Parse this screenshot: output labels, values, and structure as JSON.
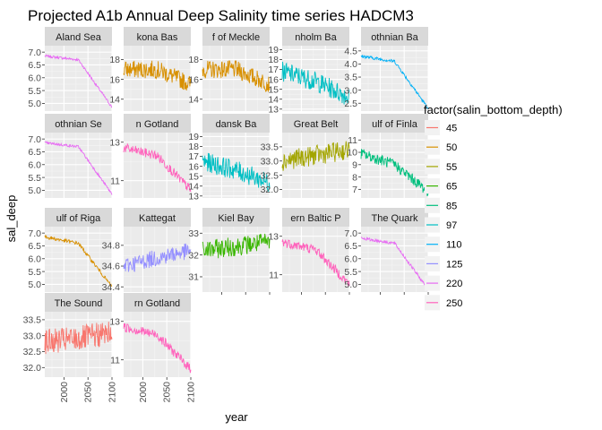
{
  "chart_data": {
    "type": "line",
    "title": "Projected A1b Annual Deep Salinity time series HADCM3",
    "xlabel": "year",
    "ylabel": "sal_deep",
    "xlim": [
      1960,
      2100
    ],
    "x_ticks": [
      "2000",
      "2050",
      "2100"
    ],
    "legend": {
      "title": "factor(salin_bottom_depth)",
      "position": "right",
      "entries": [
        {
          "label": "45",
          "color": "#F8766D"
        },
        {
          "label": "50",
          "color": "#D89000"
        },
        {
          "label": "55",
          "color": "#A3A500"
        },
        {
          "label": "65",
          "color": "#39B600"
        },
        {
          "label": "85",
          "color": "#00BF7D"
        },
        {
          "label": "97",
          "color": "#00BFC4"
        },
        {
          "label": "110",
          "color": "#00B0F6"
        },
        {
          "label": "125",
          "color": "#9590FF"
        },
        {
          "label": "220",
          "color": "#E76BF3"
        },
        {
          "label": "250",
          "color": "#FF62BC"
        }
      ]
    },
    "facets": [
      {
        "strip": "Aland Sea",
        "depth": "220",
        "ylim": [
          4.7,
          7.25
        ],
        "y_ticks": [
          "5.0",
          "5.5",
          "6.0",
          "6.5",
          "7.0"
        ],
        "start": 6.85,
        "mid": 6.7,
        "end": 4.85,
        "noise": 0.05
      },
      {
        "strip": "kona Bas",
        "depth": "50",
        "ylim": [
          12.8,
          19.4
        ],
        "y_ticks": [
          "14",
          "16",
          "18"
        ],
        "start": 17.0,
        "mid": 17.0,
        "end": 15.5,
        "noise": 0.9
      },
      {
        "strip": "f of Meckle",
        "depth": "50",
        "ylim": [
          12.8,
          19.4
        ],
        "y_ticks": [
          "14",
          "16",
          "18"
        ],
        "start": 17.0,
        "mid": 17.0,
        "end": 15.5,
        "noise": 0.9
      },
      {
        "strip": "nholm Ba",
        "depth": "97",
        "ylim": [
          12.8,
          19.4
        ],
        "y_ticks": [
          "13",
          "14",
          "15",
          "16",
          "17",
          "18",
          "19"
        ],
        "start": 16.8,
        "mid": 15.8,
        "end": 14.2,
        "noise": 1.0
      },
      {
        "strip": "othnian Ba",
        "depth": "110",
        "ylim": [
          2.2,
          4.7
        ],
        "y_ticks": [
          "2.5",
          "3.0",
          "3.5",
          "4.0",
          "4.5"
        ],
        "start": 4.3,
        "mid": 4.1,
        "end": 2.3,
        "noise": 0.06
      },
      {
        "strip": "othnian Se",
        "depth": "220",
        "ylim": [
          4.7,
          7.25
        ],
        "y_ticks": [
          "5.0",
          "5.5",
          "6.0",
          "6.5",
          "7.0"
        ],
        "start": 6.85,
        "mid": 6.7,
        "end": 4.85,
        "noise": 0.05
      },
      {
        "strip": "n Gotland",
        "depth": "250",
        "ylim": [
          10.1,
          13.5
        ],
        "y_ticks": [
          "11",
          "13"
        ],
        "start": 12.7,
        "mid": 12.3,
        "end": 10.5,
        "noise": 0.25
      },
      {
        "strip": "dansk Ba",
        "depth": "97",
        "ylim": [
          12.8,
          19.4
        ],
        "y_ticks": [
          "13",
          "14",
          "15",
          "16",
          "17",
          "18",
          "19"
        ],
        "start": 16.5,
        "mid": 15.6,
        "end": 14.3,
        "noise": 1.0
      },
      {
        "strip": "Great Belt",
        "depth": "55",
        "ylim": [
          31.7,
          34.0
        ],
        "y_ticks": [
          "32.0",
          "32.5",
          "33.0",
          "33.5"
        ],
        "start": 33.0,
        "mid": 33.2,
        "end": 33.4,
        "noise": 0.35
      },
      {
        "strip": "ulf of Finla",
        "depth": "85",
        "ylim": [
          6.3,
          11.6
        ],
        "y_ticks": [
          "7",
          "8",
          "9",
          "10",
          "11"
        ],
        "start": 9.9,
        "mid": 9.0,
        "end": 6.8,
        "noise": 0.45
      },
      {
        "strip": "ulf of Riga",
        "depth": "50",
        "ylim": [
          4.7,
          7.25
        ],
        "y_ticks": [
          "5.0",
          "5.5",
          "6.0",
          "6.5",
          "7.0"
        ],
        "start": 6.85,
        "mid": 6.6,
        "end": 4.9,
        "noise": 0.07
      },
      {
        "strip": "Kattegat",
        "depth": "125",
        "ylim": [
          34.35,
          34.98
        ],
        "y_ticks": [
          "34.4",
          "34.6",
          "34.8"
        ],
        "start": 34.6,
        "mid": 34.68,
        "end": 34.75,
        "noise": 0.08
      },
      {
        "strip": "Kiel Bay",
        "depth": "65",
        "ylim": [
          30.3,
          33.3
        ],
        "y_ticks": [
          "31",
          "32",
          "33"
        ],
        "start": 32.2,
        "mid": 32.4,
        "end": 32.6,
        "noise": 0.45
      },
      {
        "strip": "ern Baltic P",
        "depth": "250",
        "ylim": [
          10.1,
          13.5
        ],
        "y_ticks": [
          "11",
          "13"
        ],
        "start": 12.7,
        "mid": 12.3,
        "end": 10.5,
        "noise": 0.25
      },
      {
        "strip": "The Quark",
        "depth": "220",
        "ylim": [
          4.7,
          7.25
        ],
        "y_ticks": [
          "5.0",
          "5.5",
          "6.0",
          "6.5",
          "7.0"
        ],
        "start": 6.8,
        "mid": 6.6,
        "end": 4.8,
        "noise": 0.06
      },
      {
        "strip": "The Sound",
        "depth": "45",
        "ylim": [
          31.7,
          33.75
        ],
        "y_ticks": [
          "32.0",
          "32.5",
          "33.0",
          "33.5"
        ],
        "start": 32.8,
        "mid": 32.9,
        "end": 33.1,
        "noise": 0.4
      },
      {
        "strip": "rn Gotland",
        "depth": "250",
        "ylim": [
          10.1,
          13.5
        ],
        "y_ticks": [
          "11",
          "13"
        ],
        "start": 12.7,
        "mid": 12.3,
        "end": 10.5,
        "noise": 0.25
      }
    ]
  }
}
